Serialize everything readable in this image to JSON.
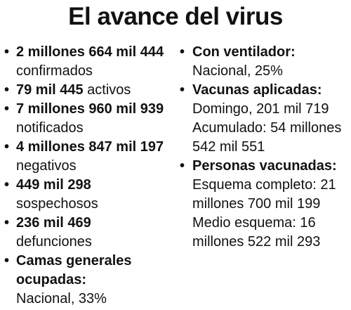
{
  "title": "El avance del virus",
  "bullet_char": "•",
  "left_items": [
    {
      "bold": "2 millones 664 mil 444",
      "normal": " confirmados"
    },
    {
      "bold": "79 mil 445",
      "normal": " activos"
    },
    {
      "bold": "7 millones 960 mil 939",
      "normal": " notificados"
    },
    {
      "bold": "4 millones 847 mil 197",
      "normal": " negativos"
    },
    {
      "bold": "449 mil 298",
      "normal": " sospechosos"
    },
    {
      "bold": "236 mil 469",
      "normal": " defunciones"
    },
    {
      "bold": "Camas generales ocupadas:",
      "normal": "Nacional, 33%"
    }
  ],
  "right_items": [
    {
      "bold": "Con ventilador:",
      "lines": [
        "Nacional, 25%"
      ]
    },
    {
      "bold": "Vacunas aplicadas:",
      "lines": [
        "Domingo, 201 mil 719",
        "Acumulado: 54 millones 542 mil 551"
      ]
    },
    {
      "bold": "Personas vacunadas:",
      "lines": [
        "Esquema completo: 21 millones 700 mil 199",
        "Medio esquema: 16 millones 522 mil 293"
      ]
    }
  ]
}
